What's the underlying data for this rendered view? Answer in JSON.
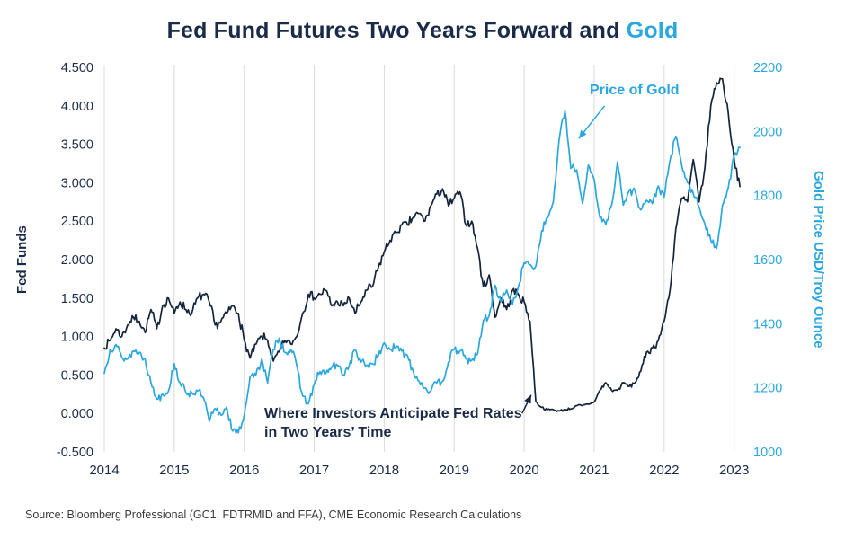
{
  "title": {
    "main": "Fed Fund Futures Two Years Forward and ",
    "highlight": "Gold"
  },
  "source": "Source: Bloomberg Professional (GC1, FDTRMID and FFA), CME Economic Research Calculations",
  "colors": {
    "navy": "#1a2b49",
    "line_navy": "#13253c",
    "blue": "#2aa7df",
    "grid": "#dadada",
    "source_text": "#3a3a3a"
  },
  "chart_data": {
    "type": "line",
    "title": "Fed Fund Futures Two Years Forward and Gold",
    "x_axis": {
      "min": 2014.0,
      "max": 2023.12,
      "ticks": [
        2014,
        2015,
        2016,
        2017,
        2018,
        2019,
        2020,
        2021,
        2022,
        2023
      ],
      "grid": true
    },
    "left_axis": {
      "label": "Fed Funds",
      "min": -0.5,
      "max": 4.5,
      "step": 0.5,
      "decimals": 3
    },
    "right_axis": {
      "label": "Gold Price USD/Troy Ounce",
      "min": 1000,
      "max": 2200,
      "step": 200,
      "decimals": 0
    },
    "series": [
      {
        "name": "Fed Fund Futures Two Years Forward",
        "axis": "left",
        "color": "navy",
        "x_start": 2014.0,
        "x_step_months": 1,
        "values": [
          0.85,
          0.95,
          1.1,
          1.0,
          1.15,
          1.25,
          1.2,
          1.05,
          1.35,
          1.1,
          1.4,
          1.5,
          1.3,
          1.45,
          1.35,
          1.3,
          1.5,
          1.55,
          1.45,
          1.15,
          1.2,
          1.3,
          1.4,
          1.3,
          0.95,
          0.72,
          0.9,
          1.0,
          0.95,
          0.68,
          0.8,
          0.95,
          0.9,
          1.0,
          1.3,
          1.55,
          1.5,
          1.55,
          1.6,
          1.4,
          1.45,
          1.4,
          1.5,
          1.3,
          1.45,
          1.6,
          1.65,
          1.9,
          2.1,
          2.25,
          2.35,
          2.45,
          2.45,
          2.55,
          2.6,
          2.5,
          2.7,
          2.85,
          2.92,
          2.7,
          2.8,
          2.88,
          2.45,
          2.5,
          2.15,
          1.65,
          1.8,
          1.25,
          1.5,
          1.35,
          1.6,
          1.55,
          1.45,
          1.2,
          0.15,
          0.08,
          0.05,
          0.05,
          0.03,
          0.05,
          0.06,
          0.1,
          0.1,
          0.12,
          0.15,
          0.3,
          0.4,
          0.3,
          0.3,
          0.4,
          0.35,
          0.4,
          0.55,
          0.8,
          0.85,
          0.95,
          1.2,
          1.6,
          2.4,
          2.8,
          2.75,
          3.3,
          2.75,
          3.2,
          4.0,
          4.3,
          4.35,
          3.9,
          3.3,
          2.95
        ]
      },
      {
        "name": "Price of Gold",
        "axis": "right",
        "color": "blue",
        "x_start": 2014.0,
        "x_step_months": 1,
        "values": [
          1245,
          1320,
          1335,
          1295,
          1290,
          1315,
          1310,
          1290,
          1215,
          1165,
          1180,
          1190,
          1275,
          1215,
          1185,
          1185,
          1190,
          1170,
          1095,
          1135,
          1115,
          1140,
          1065,
          1060,
          1115,
          1235,
          1240,
          1290,
          1215,
          1320,
          1355,
          1310,
          1320,
          1270,
          1175,
          1150,
          1210,
          1250,
          1245,
          1265,
          1270,
          1240,
          1270,
          1320,
          1280,
          1270,
          1275,
          1300,
          1340,
          1320,
          1325,
          1315,
          1300,
          1250,
          1220,
          1200,
          1190,
          1215,
          1220,
          1280,
          1320,
          1315,
          1290,
          1285,
          1305,
          1410,
          1425,
          1520,
          1470,
          1505,
          1460,
          1515,
          1590,
          1585,
          1580,
          1690,
          1730,
          1780,
          1975,
          2065,
          1885,
          1880,
          1775,
          1895,
          1850,
          1730,
          1710,
          1770,
          1905,
          1770,
          1815,
          1815,
          1755,
          1785,
          1775,
          1830,
          1795,
          1910,
          1985,
          1895,
          1840,
          1805,
          1765,
          1710,
          1660,
          1635,
          1770,
          1825,
          1925,
          1950
        ]
      }
    ],
    "annotations": [
      {
        "id": "price-of-gold",
        "text": "Price of Gold",
        "axis": "right",
        "arrow": {
          "from_year": 2021.15,
          "from_value": 2080,
          "to_year": 2020.78,
          "to_value": 1978
        }
      },
      {
        "id": "fed-anticipate",
        "text": "Where Investors Anticipate Fed Rates\nin Two Years’ Time",
        "axis": "left",
        "arrow": {
          "from_year": 2019.97,
          "from_value": 0.0,
          "to_year": 2020.1,
          "to_value": 0.24
        }
      }
    ]
  }
}
